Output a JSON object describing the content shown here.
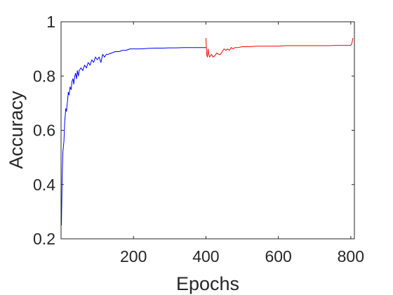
{
  "chart_data": {
    "type": "line",
    "title": "",
    "xlabel": "Epochs",
    "ylabel": "Accuracy",
    "xlim": [
      0,
      810
    ],
    "ylim": [
      0.2,
      1.0
    ],
    "xticks": [
      200,
      400,
      600,
      800
    ],
    "xtick_labels": [
      "200",
      "400",
      "600",
      "800"
    ],
    "yticks": [
      0.2,
      0.4,
      0.6,
      0.8,
      1.0
    ],
    "ytick_labels": [
      "0.2",
      "0.4",
      "0.6",
      "0.8",
      "1"
    ],
    "grid": false,
    "legend": "none",
    "series": [
      {
        "color": "#0000ff",
        "x": [
          1,
          3,
          5,
          8,
          10,
          13,
          15,
          18,
          20,
          22,
          25,
          28,
          30,
          33,
          35,
          38,
          40,
          43,
          45,
          48,
          50,
          55,
          60,
          65,
          70,
          75,
          80,
          85,
          90,
          95,
          100,
          105,
          110,
          115,
          120,
          125,
          130,
          140,
          150,
          160,
          170,
          180,
          190,
          200,
          220,
          240,
          260,
          280,
          300,
          320,
          340,
          360,
          380,
          400
        ],
        "y": [
          0.25,
          0.42,
          0.52,
          0.56,
          0.63,
          0.68,
          0.67,
          0.71,
          0.74,
          0.73,
          0.76,
          0.75,
          0.78,
          0.79,
          0.77,
          0.8,
          0.81,
          0.79,
          0.82,
          0.8,
          0.82,
          0.83,
          0.82,
          0.84,
          0.83,
          0.85,
          0.84,
          0.86,
          0.85,
          0.87,
          0.86,
          0.87,
          0.85,
          0.88,
          0.87,
          0.88,
          0.88,
          0.885,
          0.89,
          0.89,
          0.895,
          0.895,
          0.9,
          0.9,
          0.9,
          0.902,
          0.903,
          0.903,
          0.904,
          0.904,
          0.905,
          0.905,
          0.905,
          0.905
        ]
      },
      {
        "color": "#ff0000",
        "x": [
          400,
          402,
          404,
          406,
          408,
          410,
          415,
          420,
          425,
          430,
          435,
          440,
          445,
          450,
          455,
          460,
          465,
          470,
          475,
          480,
          490,
          500,
          520,
          540,
          560,
          580,
          600,
          620,
          640,
          660,
          680,
          700,
          720,
          740,
          760,
          780,
          800,
          803,
          806
        ],
        "y": [
          0.94,
          0.88,
          0.87,
          0.9,
          0.88,
          0.87,
          0.88,
          0.87,
          0.875,
          0.885,
          0.88,
          0.88,
          0.89,
          0.9,
          0.895,
          0.9,
          0.895,
          0.905,
          0.9,
          0.905,
          0.905,
          0.908,
          0.908,
          0.91,
          0.91,
          0.91,
          0.91,
          0.912,
          0.912,
          0.912,
          0.912,
          0.912,
          0.912,
          0.912,
          0.913,
          0.913,
          0.913,
          0.92,
          0.94
        ]
      }
    ]
  }
}
